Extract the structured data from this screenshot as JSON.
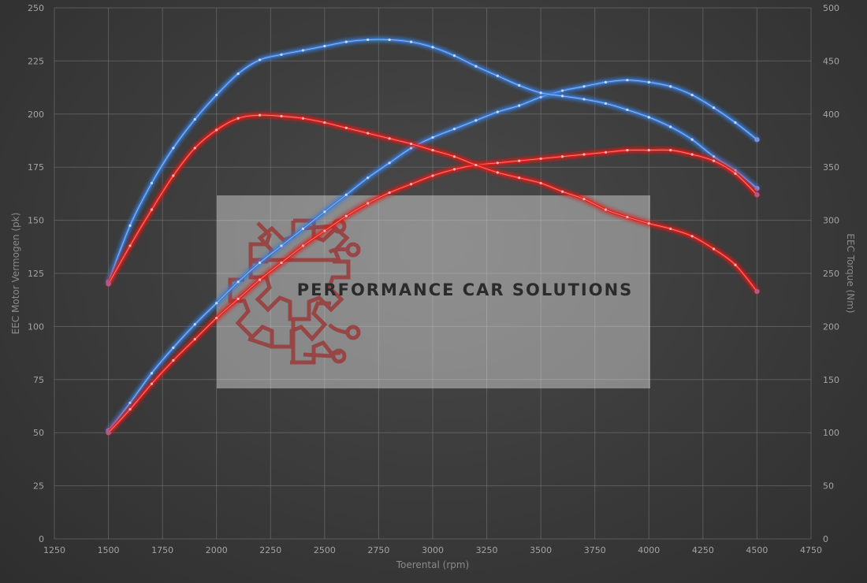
{
  "chart_data": {
    "type": "line",
    "xlabel": "Toerental (rpm)",
    "ylabel_left": "EEC Motor Vermogen (pk)",
    "ylabel_right": "EEC Torque (Nm)",
    "xlim": [
      1250,
      4750
    ],
    "ylim_left": [
      0,
      250
    ],
    "ylim_right": [
      0,
      500
    ],
    "x_ticks": [
      1250,
      1500,
      1750,
      2000,
      2250,
      2500,
      2750,
      3000,
      3250,
      3500,
      3750,
      4000,
      4250,
      4500,
      4750
    ],
    "y_ticks_left": [
      0,
      25,
      50,
      75,
      100,
      125,
      150,
      175,
      200,
      225,
      250
    ],
    "y_ticks_right": [
      0,
      50,
      100,
      150,
      200,
      250,
      300,
      350,
      400,
      450,
      500
    ],
    "grid": true,
    "series": [
      {
        "axis": "left",
        "color": "#3a7bd5",
        "x": [
          1500,
          1600,
          1700,
          1800,
          1900,
          2000,
          2100,
          2200,
          2300,
          2400,
          2500,
          2600,
          2700,
          2800,
          2900,
          3000,
          3100,
          3200,
          3300,
          3400,
          3500,
          3600,
          3700,
          3800,
          3900,
          4000,
          4100,
          4200,
          4300,
          4400,
          4500
        ],
        "y": [
          51,
          64,
          78,
          90,
          101,
          111,
          121,
          130,
          138,
          146,
          154,
          162,
          170,
          177,
          184,
          189,
          193,
          197,
          201,
          204,
          208,
          211,
          213,
          215,
          216,
          215,
          213,
          209,
          203,
          196,
          188
        ]
      },
      {
        "axis": "right",
        "color": "#3a7bd5",
        "x": [
          1500,
          1600,
          1700,
          1800,
          1900,
          2000,
          2100,
          2200,
          2300,
          2400,
          2500,
          2600,
          2700,
          2800,
          2900,
          3000,
          3100,
          3200,
          3300,
          3400,
          3500,
          3600,
          3700,
          3800,
          3900,
          4000,
          4100,
          4200,
          4300,
          4400,
          4500
        ],
        "y": [
          242,
          295,
          335,
          368,
          395,
          418,
          438,
          451,
          456,
          460,
          464,
          468,
          470,
          470,
          468,
          463,
          455,
          445,
          436,
          427,
          420,
          417,
          414,
          410,
          404,
          397,
          388,
          376,
          360,
          347,
          330
        ]
      },
      {
        "axis": "left",
        "color": "#e0231f",
        "x": [
          1500,
          1600,
          1700,
          1800,
          1900,
          2000,
          2100,
          2200,
          2300,
          2400,
          2500,
          2600,
          2700,
          2800,
          2900,
          3000,
          3100,
          3200,
          3300,
          3400,
          3500,
          3600,
          3700,
          3800,
          3900,
          4000,
          4100,
          4200,
          4300,
          4400,
          4500
        ],
        "y": [
          50,
          61,
          73,
          84,
          94,
          104,
          113,
          122,
          130,
          138,
          145,
          152,
          158,
          163,
          167,
          171,
          174,
          176,
          177,
          178,
          179,
          180,
          181,
          182,
          183,
          183,
          183,
          181,
          178,
          172,
          162
        ]
      },
      {
        "axis": "right",
        "color": "#e0231f",
        "x": [
          1500,
          1600,
          1700,
          1800,
          1900,
          2000,
          2100,
          2200,
          2300,
          2400,
          2500,
          2600,
          2700,
          2800,
          2900,
          3000,
          3100,
          3200,
          3300,
          3400,
          3500,
          3600,
          3700,
          3800,
          3900,
          4000,
          4100,
          4200,
          4300,
          4400,
          4500
        ],
        "y": [
          240,
          276,
          310,
          342,
          368,
          385,
          396,
          399,
          398,
          396,
          392,
          387,
          382,
          377,
          372,
          366,
          360,
          352,
          345,
          340,
          335,
          327,
          320,
          310,
          303,
          297,
          292,
          285,
          273,
          258,
          233
        ]
      }
    ]
  },
  "watermark": {
    "text": "PERFORMANCE CAR SOLUTIONS",
    "logo_icon": "gear-circuit-logo"
  }
}
